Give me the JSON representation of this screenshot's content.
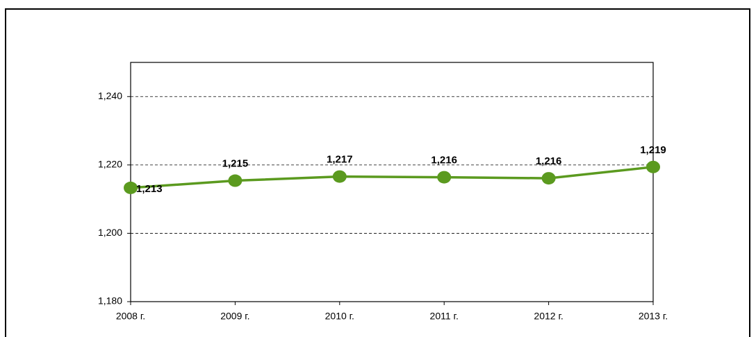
{
  "chart_data": {
    "type": "line",
    "categories": [
      "2008 г.",
      "2009 г.",
      "2010 г.",
      "2011 г.",
      "2012 г.",
      "2013 г."
    ],
    "series": [
      {
        "name": null,
        "color": "#5b9a1f",
        "values": [
          1213.3,
          1215.4,
          1216.6,
          1216.4,
          1216.1,
          1219.4
        ],
        "value_labels": [
          "1,213",
          "1,215",
          "1,217",
          "1,216",
          "1,216",
          "1,219"
        ]
      }
    ],
    "ylim": [
      1180,
      1250
    ],
    "yticks": [
      {
        "value": 1180,
        "label": "1,180"
      },
      {
        "value": 1200,
        "label": "1,200"
      },
      {
        "value": 1220,
        "label": "1,220"
      },
      {
        "value": 1240,
        "label": "1,240"
      }
    ],
    "grid": true
  }
}
